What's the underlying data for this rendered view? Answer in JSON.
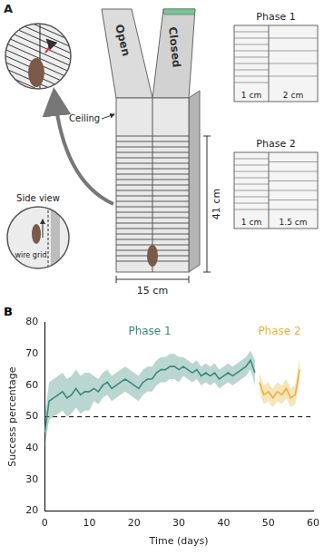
{
  "diagram": {
    "panel_labels": [
      "A",
      "B"
    ],
    "maze_arms": [
      "Open",
      "Closed"
    ],
    "ceiling_label": "Ceiling",
    "side_view": {
      "title": "Side view",
      "label": "wire grid"
    },
    "dimensions": {
      "height": "41 cm",
      "width": "15 cm"
    },
    "phases": [
      {
        "name": "Phase 1",
        "left_spacing": "1 cm",
        "right_spacing": "2 cm"
      },
      {
        "name": "Phase 2",
        "left_spacing": "1 cm",
        "right_spacing": "1.5 cm"
      }
    ]
  },
  "chart_data": {
    "type": "line",
    "x_label": "Time (days)",
    "y_label": "Success percentage",
    "xlim": [
      0,
      60
    ],
    "ylim": [
      20,
      80
    ],
    "xticks": [
      0,
      10,
      20,
      30,
      40,
      50,
      60
    ],
    "yticks": [
      20,
      30,
      40,
      50,
      60,
      70,
      80
    ],
    "reference_line": 50,
    "grid": false,
    "series": [
      {
        "name": "Phase 1",
        "color": "#3a8a7a",
        "x": [
          0,
          1,
          2,
          3,
          4,
          5,
          6,
          7,
          8,
          9,
          10,
          11,
          12,
          13,
          14,
          15,
          16,
          17,
          18,
          19,
          20,
          21,
          22,
          23,
          24,
          25,
          26,
          27,
          28,
          29,
          30,
          31,
          32,
          33,
          34,
          35,
          36,
          37,
          38,
          39,
          40,
          41,
          42,
          43,
          44,
          45,
          46,
          47
        ],
        "values": [
          45,
          55,
          56,
          57,
          58,
          56,
          57,
          59,
          57,
          58,
          58,
          59,
          58,
          60,
          61,
          59,
          60,
          61,
          62,
          61,
          60,
          59,
          61,
          62,
          62,
          64,
          65,
          65,
          66,
          66,
          65,
          66,
          65,
          64,
          65,
          63,
          64,
          63,
          64,
          62,
          63,
          64,
          63,
          64,
          65,
          66,
          68,
          64
        ],
        "lower": [
          40,
          49,
          50,
          51,
          52,
          50,
          51,
          53,
          51,
          52,
          52,
          55,
          54,
          56,
          57,
          55,
          56,
          57,
          58,
          57,
          56,
          55,
          57,
          58,
          58,
          60,
          61,
          61,
          62,
          62,
          61,
          63,
          62,
          61,
          62,
          60,
          61,
          60,
          61,
          59,
          60,
          61,
          60,
          61,
          62,
          63,
          65,
          60
        ],
        "upper": [
          50,
          61,
          62,
          63,
          64,
          62,
          63,
          65,
          63,
          64,
          64,
          63,
          62,
          64,
          65,
          63,
          64,
          65,
          66,
          65,
          64,
          63,
          65,
          66,
          66,
          68,
          69,
          69,
          70,
          70,
          69,
          69,
          68,
          67,
          68,
          66,
          67,
          66,
          67,
          65,
          66,
          67,
          66,
          67,
          68,
          69,
          71,
          68
        ]
      },
      {
        "name": "Phase 2",
        "color": "#e6b43c",
        "x": [
          48,
          49,
          50,
          51,
          52,
          53,
          54,
          55,
          56,
          57
        ],
        "values": [
          61,
          57,
          58,
          56,
          58,
          57,
          59,
          56,
          57,
          65
        ],
        "lower": [
          58,
          54,
          55,
          53,
          55,
          54,
          56,
          53,
          54,
          61
        ],
        "upper": [
          64,
          60,
          61,
          59,
          61,
          60,
          62,
          59,
          60,
          69
        ]
      }
    ]
  }
}
